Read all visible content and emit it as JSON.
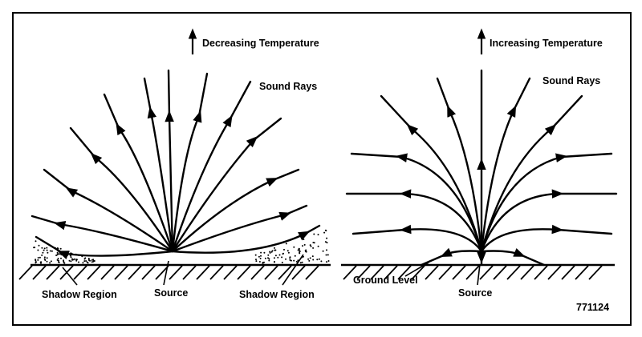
{
  "left_panel": {
    "gradient_label": "Decreasing Temperature",
    "rays_label": "Sound Rays",
    "shadow_left_label": "Shadow Region",
    "source_label": "Source",
    "shadow_right_label": "Shadow Region"
  },
  "right_panel": {
    "gradient_label": "Increasing Temperature",
    "rays_label": "Sound Rays",
    "ground_label": "Ground Level",
    "source_label": "Source"
  },
  "figure_number": "771124"
}
